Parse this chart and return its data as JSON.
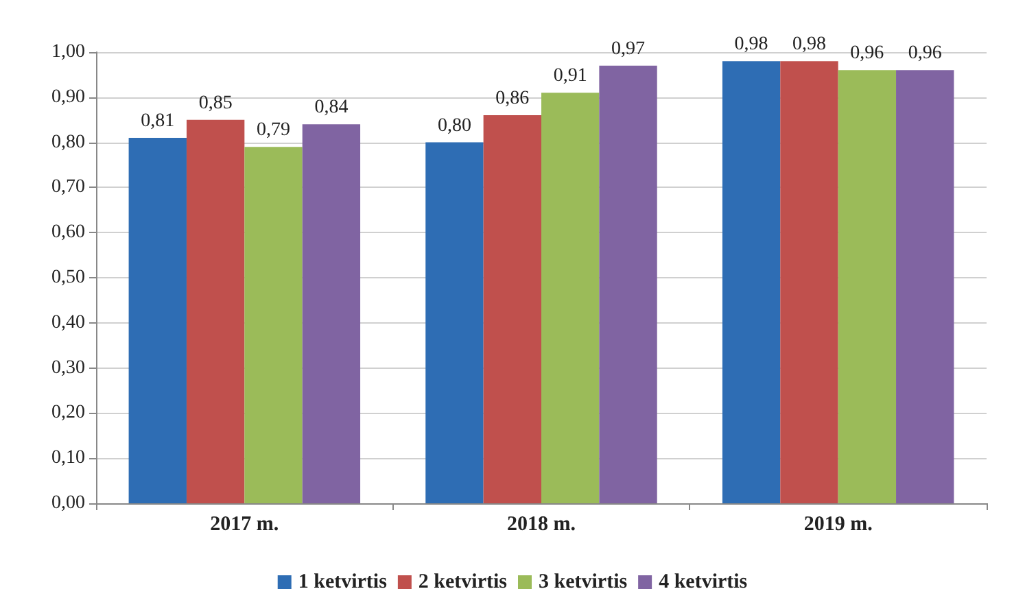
{
  "chart_data": {
    "type": "bar",
    "categories": [
      "2017 m.",
      "2018 m.",
      "2019 m."
    ],
    "series": [
      {
        "name": "1 ketvirtis",
        "color": "#2e6db4",
        "values": [
          0.81,
          0.8,
          0.98
        ],
        "value_labels": [
          "0,81",
          "0,80",
          "0,98"
        ]
      },
      {
        "name": "2 ketvirtis",
        "color": "#c0504d",
        "values": [
          0.85,
          0.86,
          0.98
        ],
        "value_labels": [
          "0,85",
          "0,86",
          "0,98"
        ]
      },
      {
        "name": "3 ketvirtis",
        "color": "#9bbb59",
        "values": [
          0.79,
          0.91,
          0.96
        ],
        "value_labels": [
          "0,79",
          "0,91",
          "0,96"
        ]
      },
      {
        "name": "4 ketvirtis",
        "color": "#8064a2",
        "values": [
          0.84,
          0.97,
          0.96
        ],
        "value_labels": [
          "0,84",
          "0,97",
          "0,96"
        ]
      }
    ],
    "ylim": [
      0,
      1
    ],
    "yticks": [
      {
        "value": 0,
        "label": "0,00"
      },
      {
        "value": 0.1,
        "label": "0,10"
      },
      {
        "value": 0.2,
        "label": "0,20"
      },
      {
        "value": 0.3,
        "label": "0,30"
      },
      {
        "value": 0.4,
        "label": "0,40"
      },
      {
        "value": 0.5,
        "label": "0,50"
      },
      {
        "value": 0.6,
        "label": "0,60"
      },
      {
        "value": 0.7,
        "label": "0,70"
      },
      {
        "value": 0.8,
        "label": "0,80"
      },
      {
        "value": 0.9,
        "label": "0,90"
      },
      {
        "value": 1,
        "label": "1,00"
      }
    ],
    "grid": "y",
    "legend": "bottom"
  }
}
